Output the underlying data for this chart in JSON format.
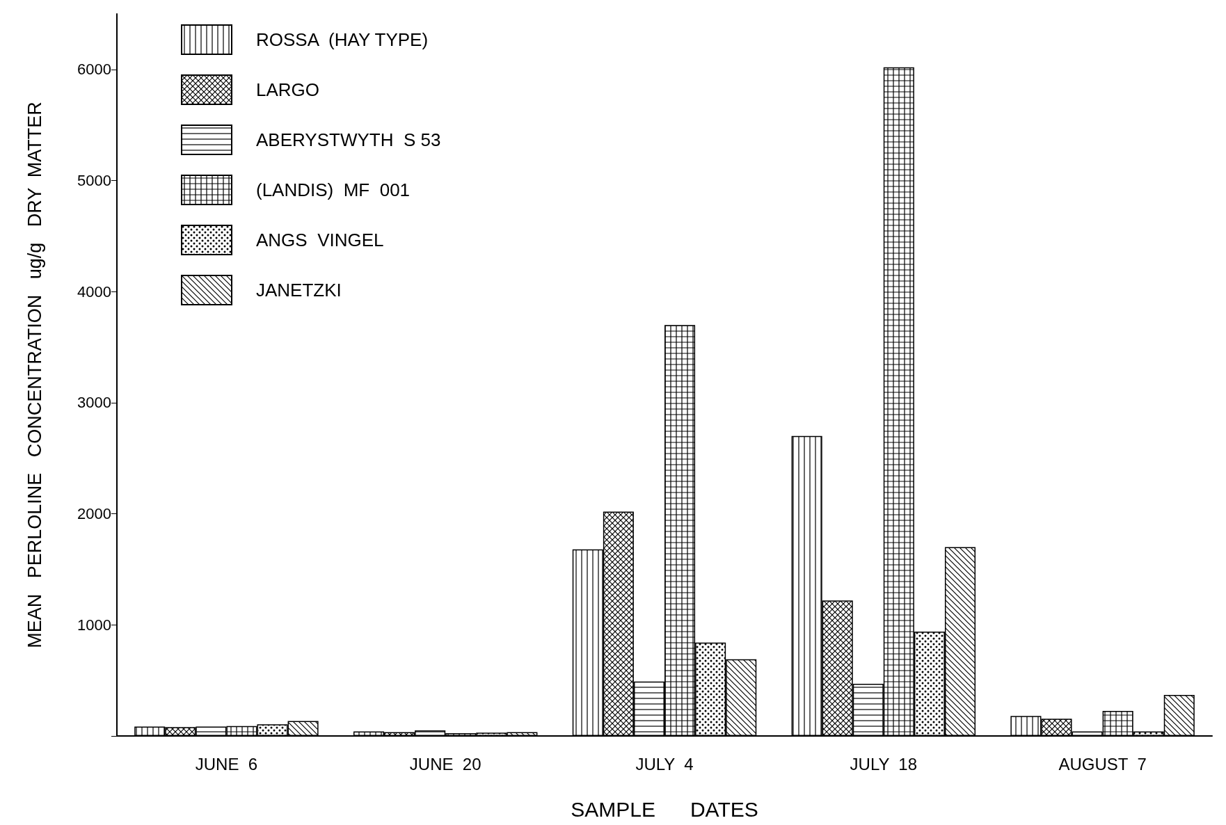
{
  "chart_data": {
    "type": "bar",
    "xlabel": "SAMPLE      DATES",
    "ylabel": "MEAN   PERLOLINE   CONCENTRATION   ug/g   DRY  MATTER",
    "categories": [
      "JUNE  6",
      "JUNE  20",
      "JULY  4",
      "JULY  18",
      "AUGUST  7"
    ],
    "series": [
      {
        "name": "ROSSA  (HAY TYPE)",
        "color": "#000000",
        "values": [
          85,
          40,
          1680,
          2700,
          180
        ]
      },
      {
        "name": "LARGO",
        "color": "#000000",
        "values": [
          80,
          35,
          2020,
          1220,
          155
        ]
      },
      {
        "name": "ABERYSTWYTH  S 53",
        "color": "#000000",
        "values": [
          85,
          50,
          490,
          470,
          40
        ]
      },
      {
        "name": "(LANDIS)  MF  001",
        "color": "#000000",
        "values": [
          90,
          25,
          3700,
          6020,
          225
        ]
      },
      {
        "name": "ANGS  VINGEL",
        "color": "#000000",
        "values": [
          105,
          30,
          840,
          940,
          40
        ]
      },
      {
        "name": "JANETZKI",
        "color": "#000000",
        "values": [
          135,
          35,
          690,
          1700,
          370
        ]
      }
    ],
    "ylim": [
      0,
      6500
    ],
    "yticks": [
      {
        "value": 0,
        "label": null
      },
      1000,
      2000,
      3000,
      4000,
      5000,
      6000
    ],
    "grid": false,
    "legend": "top left"
  }
}
